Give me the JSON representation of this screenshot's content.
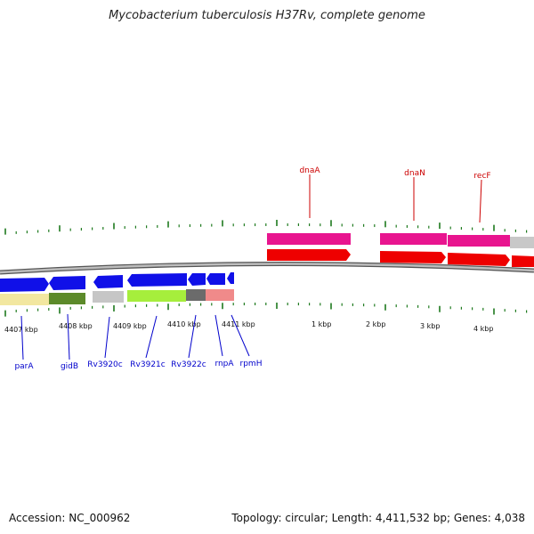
{
  "title": "Mycobacterium tuberculosis H37Rv, complete genome",
  "footer": {
    "accession": "Accession: NC_000962",
    "summary": "Topology: circular; Length: 4,411,532 bp; Genes: 4,038"
  },
  "colors": {
    "tick": "#1e7a1e",
    "backbone": "#8a8a8a",
    "forward_gene_label": "#cc0000",
    "reverse_gene_label": "#0000cc"
  },
  "scale_labels": [
    "4407 kbp",
    "4408 kbp",
    "4409 kbp",
    "4410 kbp",
    "4411 kbp",
    "1 kbp",
    "2 kbp",
    "3 kbp",
    "4 kbp"
  ],
  "forward_genes": [
    {
      "label": "dnaA",
      "color": "#e8008a"
    },
    {
      "label": "dnaN",
      "color": "#e8008a"
    },
    {
      "label": "recF",
      "color": "#e8008a"
    }
  ],
  "reverse_genes": [
    {
      "label": "parA"
    },
    {
      "label": "gidB"
    },
    {
      "label": "Rv3920c"
    },
    {
      "label": "Rv3921c"
    },
    {
      "label": "Rv3922c"
    },
    {
      "label": "rnpA"
    },
    {
      "label": "rpmH"
    }
  ]
}
